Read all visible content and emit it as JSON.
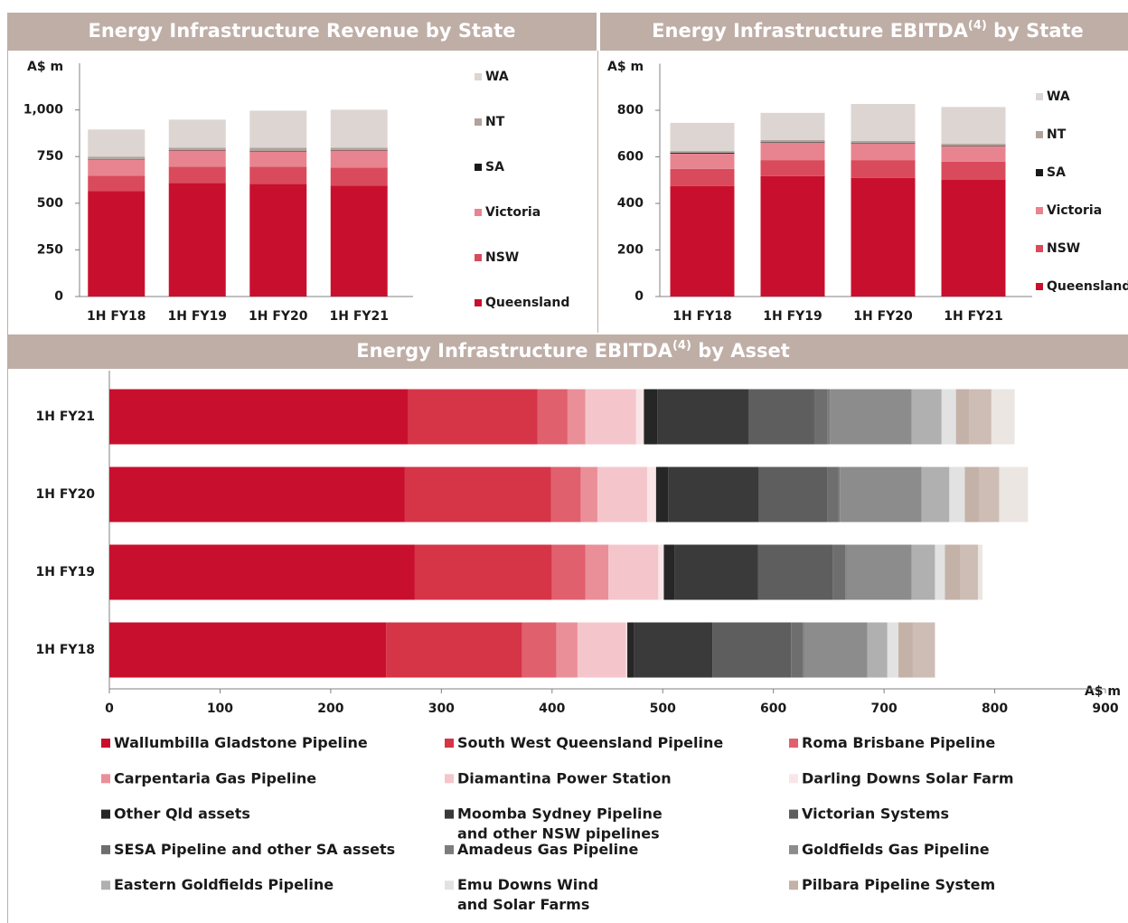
{
  "chart_data": [
    {
      "type": "bar",
      "title": "Energy Infrastructure Revenue by State",
      "y_label": "A$ m",
      "categories": [
        "1H FY18",
        "1H FY19",
        "1H FY20",
        "1H FY21"
      ],
      "series": [
        {
          "name": "Queensland",
          "color": "#c8102e",
          "values": [
            566,
            609,
            604,
            595
          ]
        },
        {
          "name": "NSW",
          "color": "#d94b5c",
          "values": [
            82,
            87,
            92,
            96
          ]
        },
        {
          "name": "Victoria",
          "color": "#e8848f",
          "values": [
            87,
            87,
            82,
            92
          ]
        },
        {
          "name": "SA",
          "color": "#1a1a1a",
          "values": [
            2,
            2,
            2,
            2
          ]
        },
        {
          "name": "NT",
          "color": "#b0a39d",
          "values": [
            13,
            13,
            18,
            13
          ]
        },
        {
          "name": "WA",
          "color": "#ddd5d1",
          "values": [
            145,
            150,
            198,
            203
          ]
        }
      ],
      "ylim": [
        0,
        1250
      ],
      "yticks": [
        0,
        250,
        500,
        750,
        {
          "value": 1000,
          "label": "1,000"
        }
      ]
    },
    {
      "type": "bar",
      "title": "Energy Infrastructure EBITDA",
      "title_superscript": "(4)",
      "title_end": " by State",
      "y_label": "A$ m",
      "categories": [
        "1H FY18",
        "1H FY19",
        "1H FY20",
        "1H FY21"
      ],
      "series": [
        {
          "name": "Queensland",
          "color": "#c8102e",
          "values": [
            474,
            517,
            509,
            501
          ]
        },
        {
          "name": "NSW",
          "color": "#d94b5c",
          "values": [
            74,
            69,
            77,
            78
          ]
        },
        {
          "name": "Victoria",
          "color": "#e8848f",
          "values": [
            66,
            74,
            70,
            66
          ]
        },
        {
          "name": "SA",
          "color": "#1a1a1a",
          "values": [
            4,
            2,
            2,
            2
          ]
        },
        {
          "name": "NT",
          "color": "#b0a39d",
          "values": [
            7,
            10,
            10,
            9
          ]
        },
        {
          "name": "WA",
          "color": "#ddd5d1",
          "values": [
            121,
            117,
            159,
            158
          ]
        }
      ],
      "ylim": [
        0,
        1000
      ],
      "yticks": [
        0,
        200,
        400,
        600,
        800
      ]
    },
    {
      "type": "hbar",
      "title": "Energy Infrastructure EBITDA",
      "title_superscript": "(4)",
      "title_end": " by Asset",
      "x_label": "A$ m",
      "categories": [
        "1H FY21",
        "1H FY20",
        "1H FY19",
        "1H FY18"
      ],
      "series": [
        {
          "name": "Wallumbilla Gladstone Pipeline",
          "color": "#c8102e",
          "values": [
            270,
            267,
            276,
            250
          ]
        },
        {
          "name": "South West Queensland Pipeline",
          "color": "#d63447",
          "values": [
            117,
            132,
            124,
            123
          ]
        },
        {
          "name": "Roma Brisbane Pipeline",
          "color": "#e0606e",
          "values": [
            27,
            27,
            30,
            31
          ]
        },
        {
          "name": "Carpentaria Gas Pipeline",
          "color": "#ea8f98",
          "values": [
            16,
            15,
            21,
            19
          ]
        },
        {
          "name": "Diamantina Power Station",
          "color": "#f4c6cb",
          "values": [
            46,
            45,
            45,
            44
          ]
        },
        {
          "name": "Darling Downs Solar Farm",
          "color": "#f9e6e8",
          "values": [
            7,
            8,
            5,
            1
          ]
        },
        {
          "name": "Other Qld assets",
          "color": "#262626",
          "values": [
            12,
            11,
            10,
            6
          ]
        },
        {
          "name": "Moomba Sydney Pipeline\nand other NSW pipelines",
          "color": "#3a3a3a",
          "values": [
            83,
            82,
            75,
            71
          ]
        },
        {
          "name": "Victorian Systems",
          "color": "#5e5e5e",
          "values": [
            59,
            62,
            68,
            71
          ]
        },
        {
          "name": "SESA Pipeline and other SA assets",
          "color": "#6e6e6e",
          "values": [
            12,
            10,
            11,
            11
          ]
        },
        {
          "name": "Amadeus Gas Pipeline",
          "color": "#7c7c7c",
          "values": [
            2,
            1,
            1,
            1
          ]
        },
        {
          "name": "Goldfields Gas Pipeline",
          "color": "#8c8c8c",
          "values": [
            74,
            74,
            59,
            57
          ]
        },
        {
          "name": "Eastern Goldfields Pipeline",
          "color": "#b0b0b0",
          "values": [
            27,
            25,
            21,
            18
          ]
        },
        {
          "name": "Emu Downs Wind\nand Solar Farms",
          "color": "#e2e2e2",
          "values": [
            13,
            14,
            9,
            10
          ]
        },
        {
          "name": "Pilbara Pipeline System",
          "color": "#c4b1a8",
          "values": [
            12,
            13,
            14,
            13
          ]
        },
        {
          "color": "#cdbdb5",
          "values": [
            20,
            18,
            16,
            20
          ]
        },
        {
          "color": "#ece6e3",
          "values": [
            21,
            26,
            4,
            0
          ]
        }
      ],
      "xlim": [
        0,
        900
      ],
      "xticks": [
        0,
        100,
        200,
        300,
        400,
        500,
        600,
        700,
        800,
        900
      ]
    }
  ]
}
